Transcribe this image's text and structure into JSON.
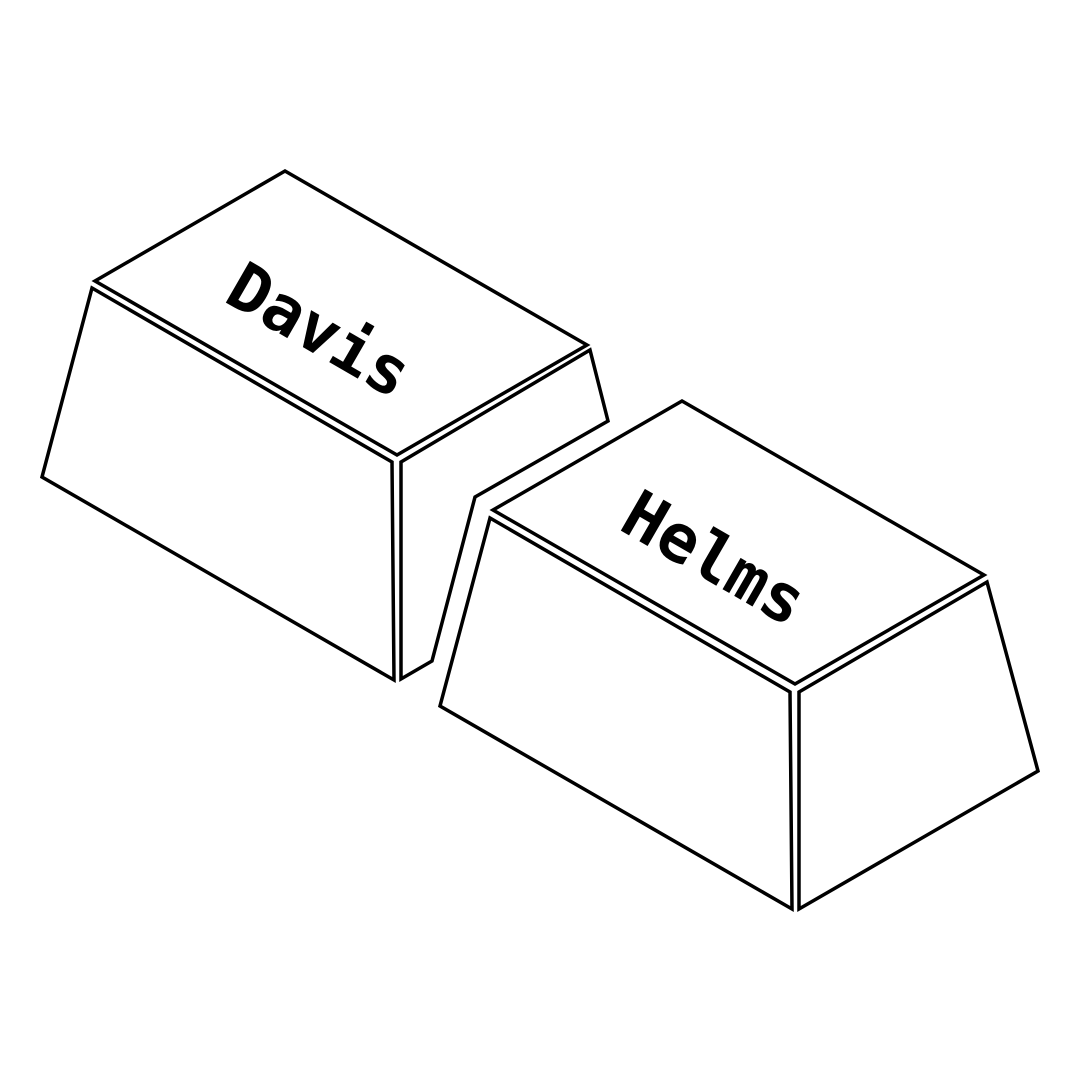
{
  "keycaps": [
    {
      "label": "Davis"
    },
    {
      "label": "Helms"
    }
  ],
  "colors": {
    "background": "#ffffff",
    "stroke": "#000000"
  }
}
